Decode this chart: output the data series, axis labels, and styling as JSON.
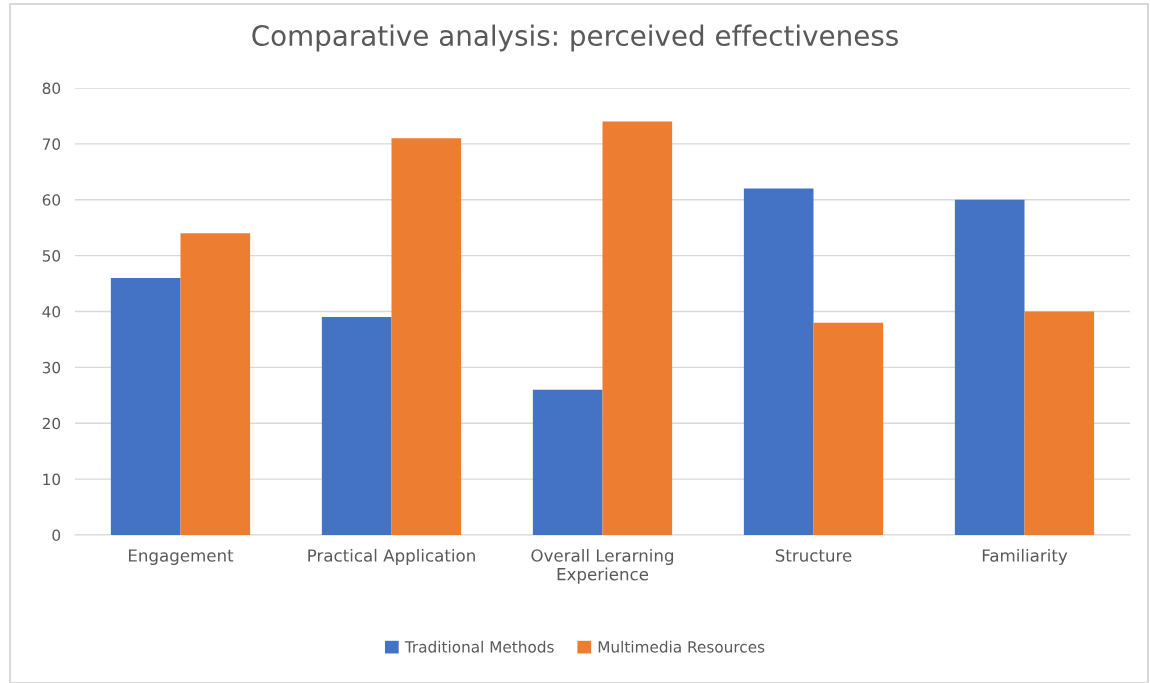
{
  "chart_data": {
    "type": "bar",
    "title": "Comparative analysis: perceived effectiveness",
    "categories": [
      "Engagement",
      "Practical Application",
      "Overall Lerarning\nExperience",
      "Structure",
      "Familiarity"
    ],
    "series": [
      {
        "name": "Traditional Methods",
        "color": "#4472c4",
        "values": [
          46,
          39,
          26,
          62,
          60
        ]
      },
      {
        "name": "Multimedia Resources",
        "color": "#ed7d31",
        "values": [
          54,
          71,
          74,
          38,
          40
        ]
      }
    ],
    "ylim": [
      0,
      80
    ],
    "yticks": [
      0,
      10,
      20,
      30,
      40,
      50,
      60,
      70,
      80
    ],
    "grid": "y",
    "legend": "bottom"
  }
}
